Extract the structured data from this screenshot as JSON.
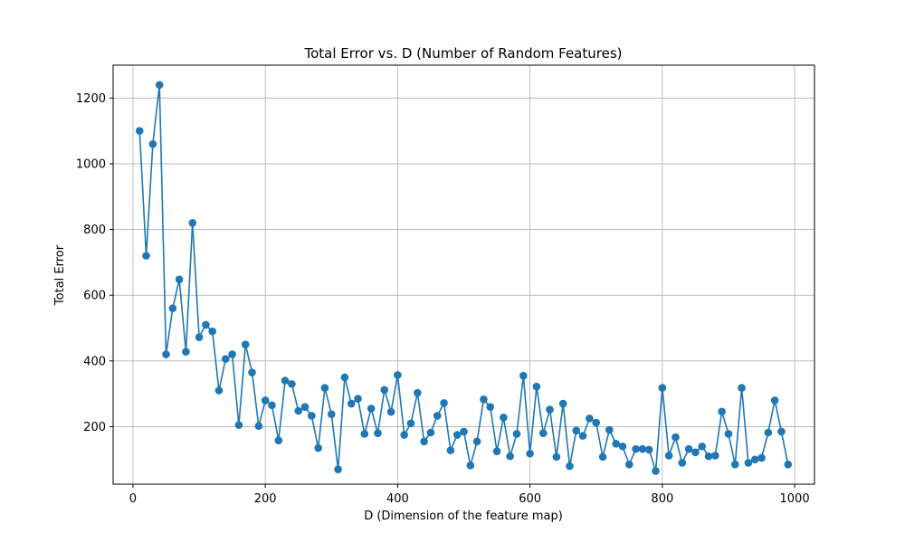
{
  "chart_data": {
    "type": "line",
    "title": "Total Error vs. D (Number of Random Features)",
    "xlabel": "D (Dimension of the feature map)",
    "ylabel": "Total Error",
    "xlim": [
      -30,
      1030
    ],
    "ylim": [
      25,
      1300
    ],
    "xticks": [
      0,
      200,
      400,
      600,
      800,
      1000
    ],
    "yticks": [
      200,
      400,
      600,
      800,
      1000,
      1200
    ],
    "grid": true,
    "marker": "circle",
    "color": "#1f77b4",
    "series": [
      {
        "x": [
          10,
          20,
          30,
          40,
          50,
          60,
          70,
          80,
          90,
          100,
          110,
          120,
          130,
          140,
          150,
          160,
          170,
          180,
          190,
          200,
          210,
          220,
          230,
          240,
          250,
          260,
          270,
          280,
          290,
          300,
          310,
          320,
          330,
          340,
          350,
          360,
          370,
          380,
          390,
          400,
          410,
          420,
          430,
          440,
          450,
          460,
          470,
          480,
          490,
          500,
          510,
          520,
          530,
          540,
          550,
          560,
          570,
          580,
          590,
          600,
          610,
          620,
          630,
          640,
          650,
          660,
          670,
          680,
          690,
          700,
          710,
          720,
          730,
          740,
          750,
          760,
          770,
          780,
          790,
          800,
          810,
          820,
          830,
          840,
          850,
          860,
          870,
          880,
          890,
          900,
          910,
          920,
          930,
          940,
          950,
          960,
          970,
          980,
          990
        ],
        "values": [
          1100,
          720,
          1060,
          1240,
          420,
          560,
          648,
          428,
          820,
          472,
          510,
          490,
          310,
          406,
          420,
          205,
          450,
          365,
          202,
          280,
          265,
          158,
          340,
          330,
          248,
          260,
          233,
          135,
          318,
          238,
          70,
          350,
          270,
          285,
          178,
          255,
          180,
          312,
          245,
          357,
          175,
          210,
          303,
          155,
          182,
          233,
          272,
          128,
          175,
          185,
          82,
          155,
          283,
          260,
          125,
          228,
          110,
          178,
          355,
          118,
          322,
          180,
          252,
          108,
          270,
          80,
          188,
          172,
          225,
          212,
          108,
          190,
          148,
          140,
          85,
          132,
          132,
          130,
          65,
          318,
          112,
          168,
          90,
          132,
          122,
          140,
          110,
          112,
          246,
          178,
          85,
          318,
          90,
          100,
          105,
          182,
          280,
          185,
          85
        ]
      }
    ]
  }
}
